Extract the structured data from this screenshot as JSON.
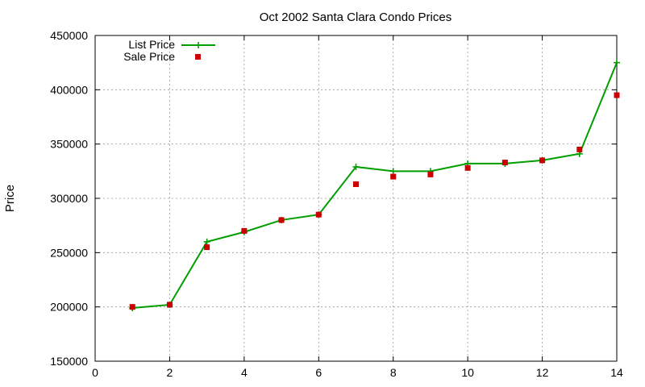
{
  "chart_data": {
    "type": "line",
    "title": "Oct 2002 Santa Clara Condo Prices",
    "xlabel": "",
    "ylabel": "Price",
    "xlim": [
      0,
      14
    ],
    "ylim": [
      150000,
      450000
    ],
    "x_ticks": [
      0,
      2,
      4,
      6,
      8,
      10,
      12,
      14
    ],
    "y_ticks": [
      150000,
      200000,
      250000,
      300000,
      350000,
      400000,
      450000
    ],
    "grid": true,
    "legend_position": "top-left",
    "series": [
      {
        "name": "List Price",
        "style": "line+plus",
        "color": "#009e00",
        "x": [
          1,
          2,
          3,
          4,
          5,
          6,
          7,
          8,
          9,
          10,
          11,
          12,
          13,
          14
        ],
        "y": [
          199000,
          202000,
          260000,
          269000,
          280000,
          285000,
          329000,
          325000,
          325000,
          332000,
          332000,
          335000,
          341000,
          425000
        ]
      },
      {
        "name": "Sale Price",
        "style": "square",
        "color": "#cc0000",
        "x": [
          1,
          2,
          3,
          4,
          5,
          6,
          7,
          8,
          9,
          10,
          11,
          12,
          13,
          14
        ],
        "y": [
          200000,
          202000,
          255000,
          270000,
          280000,
          285000,
          313000,
          320000,
          322000,
          328000,
          333000,
          335000,
          345000,
          395000
        ]
      }
    ]
  }
}
